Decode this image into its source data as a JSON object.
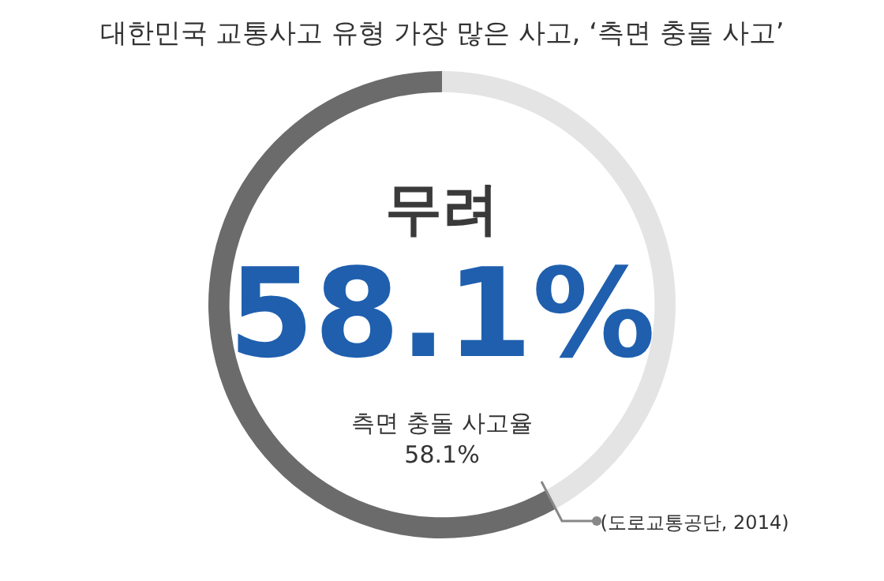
{
  "chart_data": {
    "type": "donut",
    "title": "대한민국 교통사고 유형 가장 많은 사고, ‘측면 충돌 사고’",
    "categories": [
      null,
      "측면 충돌 사고율"
    ],
    "values": [
      41.9,
      58.1
    ],
    "colors": [
      "#e4e4e4",
      "#6b6b6b"
    ],
    "value_labels": [
      null,
      "58.1%"
    ],
    "annotations": [
      "무려",
      "58.1%",
      "(도로교통공단, 2014)"
    ],
    "legend": false
  }
}
